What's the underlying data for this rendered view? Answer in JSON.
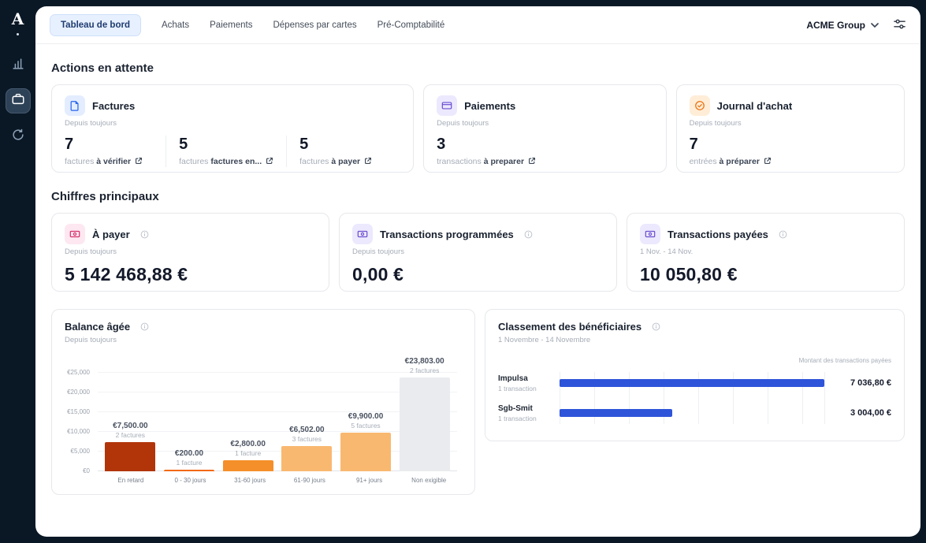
{
  "app": {
    "logo": "A"
  },
  "topnav": {
    "tabs": [
      {
        "label": "Tableau de bord"
      },
      {
        "label": "Achats"
      },
      {
        "label": "Paiements"
      },
      {
        "label": "Dépenses par cartes"
      },
      {
        "label": "Pré-Comptabilité"
      }
    ],
    "org_label": "ACME Group"
  },
  "actions": {
    "title": "Actions en attente",
    "cards": [
      {
        "title": "Factures",
        "subtitle": "Depuis toujours",
        "stats": [
          {
            "value": "7",
            "muted": "factures",
            "strong": "à vérifier"
          },
          {
            "value": "5",
            "muted": "factures",
            "strong": "factures en..."
          },
          {
            "value": "5",
            "muted": "factures",
            "strong": "à payer"
          }
        ]
      },
      {
        "title": "Paiements",
        "subtitle": "Depuis toujours",
        "stats": [
          {
            "value": "3",
            "muted": "transactions",
            "strong": "à preparer"
          }
        ]
      },
      {
        "title": "Journal d'achat",
        "subtitle": "Depuis toujours",
        "stats": [
          {
            "value": "7",
            "muted": "entrées",
            "strong": "à préparer"
          }
        ]
      }
    ]
  },
  "figures": {
    "title": "Chiffres principaux",
    "cards": [
      {
        "title": "À payer",
        "subtitle": "Depuis toujours",
        "amount": "5 142 468,88 €"
      },
      {
        "title": "Transactions programmées",
        "subtitle": "Depuis toujours",
        "amount": "0,00 €"
      },
      {
        "title": "Transactions payées",
        "subtitle": "1 Nov. - 14 Nov.",
        "amount": "10 050,80 €"
      }
    ]
  },
  "chart_data": [
    {
      "type": "bar",
      "title": "Balance âgée",
      "subtitle": "Depuis toujours",
      "categories": [
        "En retard",
        "0 - 30 jours",
        "31-60 jours",
        "61-90 jours",
        "91+ jours",
        "Non exigible"
      ],
      "values": [
        7500,
        200,
        2800,
        6502,
        9900,
        23803
      ],
      "value_labels": [
        "€7,500.00",
        "€200.00",
        "€2,800.00",
        "€6,502.00",
        "€9,900.00",
        "€23,803.00"
      ],
      "count_labels": [
        "2 factures",
        "1 facture",
        "1 facture",
        "3 factures",
        "5 factures",
        "2 factures"
      ],
      "bar_colors": [
        "#b13509",
        "#f2680f",
        "#f58f2a",
        "#f9b870",
        "#f9b870",
        "#e9ebee"
      ],
      "ylim": [
        0,
        25000
      ],
      "yticks_labels": [
        "€0",
        "€5,000",
        "€10,000",
        "€15,000",
        "€20,000",
        "€25,000"
      ],
      "grid": true,
      "legend": "none"
    },
    {
      "type": "bar_horizontal",
      "title": "Classement des bénéficiaires",
      "subtitle": "1 Novembre - 14 Novembre",
      "axis_label": "Montant des transactions payées",
      "categories": [
        "Impulsa",
        "Sgb-Smit"
      ],
      "category_subs": [
        "1 transaction",
        "1 transaction"
      ],
      "values": [
        7036.8,
        3004.0
      ],
      "value_labels": [
        "7 036,80 €",
        "3 004,00 €"
      ],
      "bar_color": "#2e54d9",
      "grid": true,
      "legend": "none"
    }
  ],
  "colors": {
    "sidebar_bg": "#0a1826",
    "active_tab_bg": "#e7f0fe",
    "active_tab_text": "#1f3b70",
    "accent_blue": "#2e54d9"
  }
}
